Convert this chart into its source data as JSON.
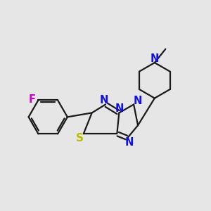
{
  "bg_color": "#e6e6e6",
  "bond_color": "#1a1a1a",
  "N_color": "#1010ee",
  "S_color": "#bbbb00",
  "F_color": "#cc00cc",
  "line_width": 1.6,
  "font_size": 10.5,
  "xlim": [
    0,
    1
  ],
  "ylim": [
    0,
    1
  ]
}
